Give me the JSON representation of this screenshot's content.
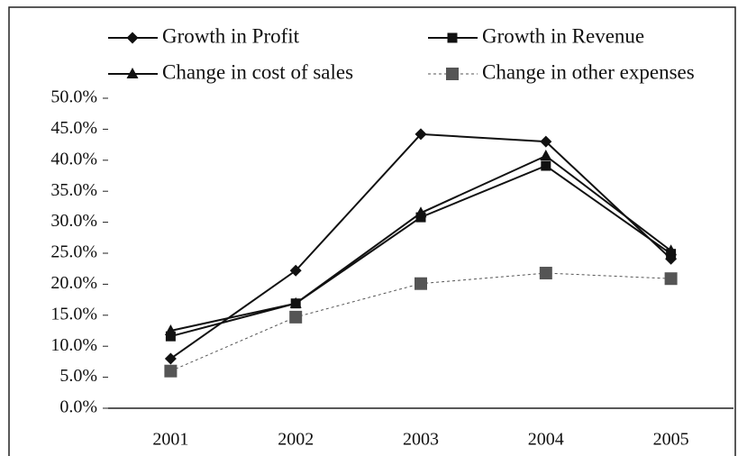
{
  "chart_data": {
    "type": "line",
    "categories": [
      "2001",
      "2002",
      "2003",
      "2004",
      "2005"
    ],
    "series": [
      {
        "name": "Growth in Profit",
        "color": "#111111",
        "marker": "diamond",
        "dash": false,
        "values": [
          8.0,
          22.2,
          44.2,
          43.0,
          24.1
        ]
      },
      {
        "name": "Growth in Revenue",
        "color": "#111111",
        "marker": "square",
        "dash": false,
        "values": [
          11.6,
          16.9,
          30.8,
          39.1,
          24.9
        ]
      },
      {
        "name": "Change in cost of sales",
        "color": "#111111",
        "marker": "triangle",
        "dash": false,
        "values": [
          12.5,
          16.9,
          31.5,
          40.7,
          25.4
        ]
      },
      {
        "name": "Change in other expenses",
        "color": "#555555",
        "marker": "square",
        "dash": true,
        "values": [
          6.0,
          14.7,
          20.1,
          21.8,
          20.9
        ]
      }
    ],
    "ylim": [
      0,
      50
    ],
    "yticks": [
      {
        "value": 0,
        "label": "0.0%"
      },
      {
        "value": 5,
        "label": "5.0%"
      },
      {
        "value": 10,
        "label": "10.0%"
      },
      {
        "value": 15,
        "label": "15.0%"
      },
      {
        "value": 20,
        "label": "20.0%"
      },
      {
        "value": 25,
        "label": "25.0%"
      },
      {
        "value": 30,
        "label": "30.0%"
      },
      {
        "value": 35,
        "label": "35.0%"
      },
      {
        "value": 40,
        "label": "40.0%"
      },
      {
        "value": 45,
        "label": "45.0%"
      },
      {
        "value": 50,
        "label": "50.0%"
      }
    ],
    "grid": false,
    "legend": "top"
  }
}
